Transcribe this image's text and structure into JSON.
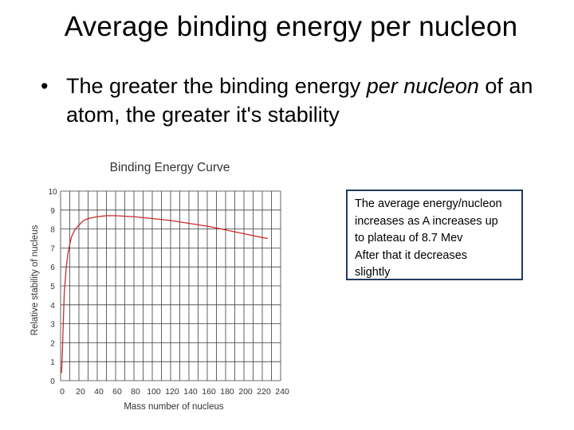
{
  "slide": {
    "title": "Average binding energy per nucleon",
    "bullet": {
      "text_before": "The greater the binding energy ",
      "text_emphasis": "per nucleon",
      "text_after": " of an atom, the greater it's stability"
    }
  },
  "note": {
    "lines": [
      "The average energy/nucleon",
      "increases as A increases up",
      "to plateau of 8.7 Mev",
      "After that it decreases",
      "slightly"
    ]
  },
  "chart_data": {
    "type": "line",
    "title": "Binding Energy Curve",
    "xlabel": "Mass number of nucleus",
    "ylabel": "Relative stability of nucleus",
    "xlim": [
      0,
      240
    ],
    "ylim": [
      0,
      10
    ],
    "x_ticks": [
      "0",
      "20",
      "40",
      "60",
      "80",
      "100",
      "120",
      "140",
      "160",
      "180",
      "200",
      "220",
      "240"
    ],
    "y_ticks": [
      "0",
      "1",
      "2",
      "3",
      "4",
      "5",
      "6",
      "7",
      "8",
      "9",
      "10"
    ],
    "grid": true,
    "series": [
      {
        "color": "#cc2a2a",
        "x": [
          1,
          2,
          3,
          4,
          6,
          8,
          10,
          12,
          16,
          20,
          25,
          30,
          40,
          50,
          56,
          60,
          80,
          100,
          120,
          140,
          160,
          180,
          200,
          220,
          226
        ],
        "y": [
          0.4,
          1.6,
          3.2,
          4.6,
          5.9,
          6.7,
          7.2,
          7.6,
          8.0,
          8.2,
          8.45,
          8.55,
          8.65,
          8.7,
          8.7,
          8.7,
          8.65,
          8.55,
          8.45,
          8.3,
          8.15,
          7.95,
          7.75,
          7.55,
          7.5
        ]
      }
    ]
  }
}
